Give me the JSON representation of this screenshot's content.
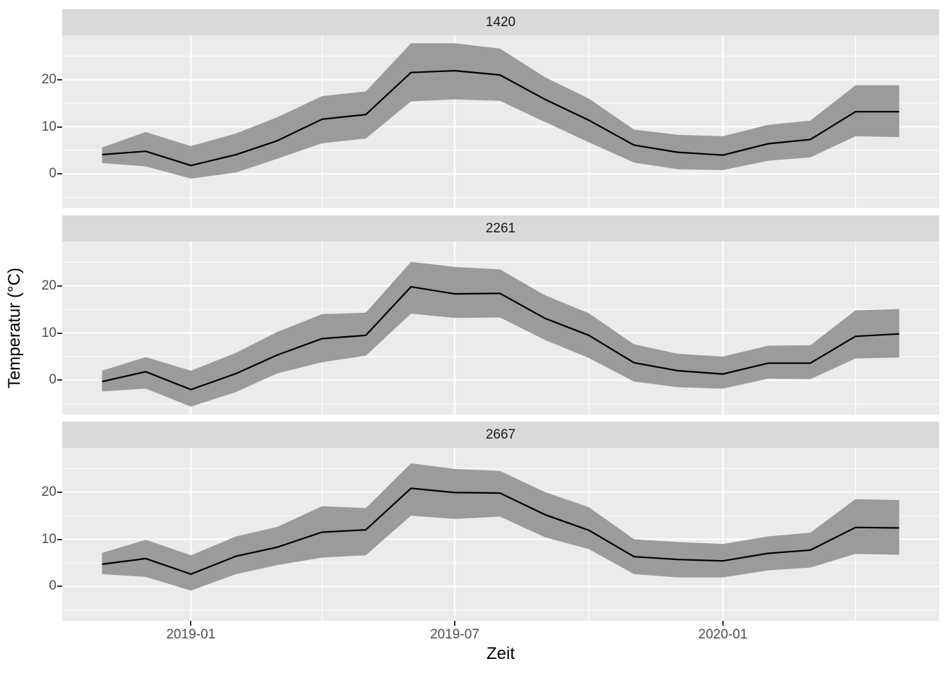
{
  "figure": {
    "background": "#ffffff",
    "panel_background": "#ebebeb",
    "strip_background": "#d9d9d9",
    "grid_color": "#ffffff",
    "ribbon_color": "#9b9b9b",
    "line_color": "#000000",
    "tick_label_color": "#4d4d4d"
  },
  "chart_data": {
    "type": "line",
    "title": "",
    "xlabel": "Zeit",
    "ylabel": "Temperatur (°C)",
    "legend": "none",
    "grid": "on",
    "ylim": [
      -7.3,
      29.4
    ],
    "y_major_gridlines": [
      0,
      10,
      20
    ],
    "y_minor_gridlines": [
      -5,
      5,
      15,
      25
    ],
    "y_tick_labels": [
      "0",
      "10",
      "20"
    ],
    "x_tick_labels": [
      "2019-01",
      "2019-07",
      "2020-01"
    ],
    "x_minor_gridlines": [
      "2019-04",
      "2019-10",
      "2020-04"
    ],
    "x": [
      "2018-11",
      "2018-12",
      "2019-01",
      "2019-02",
      "2019-03",
      "2019-04",
      "2019-05",
      "2019-06",
      "2019-07",
      "2019-08",
      "2019-09",
      "2019-10",
      "2019-11",
      "2019-12",
      "2020-01",
      "2020-02",
      "2020-03",
      "2020-04",
      "2020-05"
    ],
    "facets": [
      {
        "label": "1420",
        "series": {
          "mean": [
            4.1,
            4.8,
            1.8,
            4.1,
            7.0,
            11.6,
            12.6,
            21.5,
            21.9,
            21.0,
            15.8,
            11.4,
            6.1,
            4.6,
            4.0,
            6.4,
            7.3,
            13.2,
            13.2
          ],
          "band_lower": [
            2.3,
            1.6,
            -1.0,
            0.3,
            3.2,
            6.5,
            7.5,
            15.4,
            15.8,
            15.5,
            11.0,
            6.7,
            2.4,
            1.0,
            0.8,
            2.8,
            3.5,
            8.0,
            7.8
          ],
          "band_upper": [
            5.6,
            8.9,
            5.9,
            8.6,
            12.0,
            16.5,
            17.5,
            27.7,
            27.7,
            26.6,
            20.5,
            16.0,
            9.4,
            8.3,
            8.0,
            10.4,
            11.3,
            18.8,
            18.8
          ]
        }
      },
      {
        "label": "2261",
        "series": {
          "mean": [
            -0.3,
            1.8,
            -2.0,
            1.4,
            5.3,
            8.8,
            9.5,
            19.8,
            18.3,
            18.4,
            13.1,
            9.5,
            3.7,
            2.0,
            1.3,
            3.6,
            3.6,
            9.3,
            9.8
          ],
          "band_lower": [
            -2.4,
            -1.8,
            -5.6,
            -2.5,
            1.4,
            3.8,
            5.2,
            14.1,
            13.2,
            13.3,
            8.5,
            4.7,
            -0.3,
            -1.5,
            -1.8,
            0.3,
            0.2,
            4.6,
            4.8
          ],
          "band_upper": [
            2.0,
            4.9,
            2.0,
            5.8,
            10.2,
            14.0,
            14.3,
            25.1,
            24.0,
            23.5,
            18.0,
            14.2,
            7.6,
            5.6,
            5.0,
            7.3,
            7.4,
            14.8,
            15.1
          ]
        }
      },
      {
        "label": "2667",
        "series": {
          "mean": [
            4.7,
            5.9,
            2.6,
            6.4,
            8.3,
            11.5,
            12.0,
            20.8,
            19.9,
            19.8,
            15.2,
            11.9,
            6.3,
            5.7,
            5.4,
            7.0,
            7.7,
            12.5,
            12.4
          ],
          "band_lower": [
            2.6,
            2.0,
            -0.9,
            2.6,
            4.5,
            6.1,
            6.6,
            15.0,
            14.3,
            14.8,
            10.4,
            7.9,
            2.6,
            1.9,
            1.9,
            3.4,
            4.0,
            6.9,
            6.7
          ],
          "band_upper": [
            7.1,
            9.9,
            6.6,
            10.6,
            12.6,
            17.0,
            16.6,
            26.1,
            24.9,
            24.5,
            20.0,
            16.8,
            10.0,
            9.4,
            9.0,
            10.6,
            11.4,
            18.5,
            18.3
          ]
        }
      }
    ]
  }
}
